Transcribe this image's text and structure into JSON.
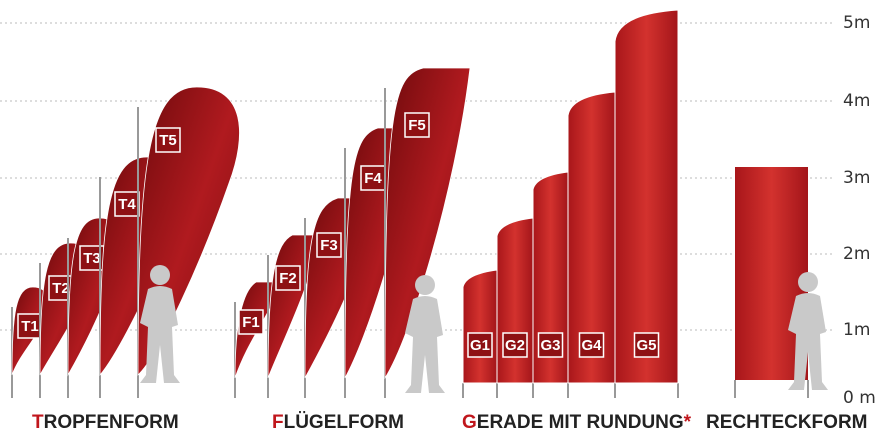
{
  "axis": {
    "labels": [
      "0 m",
      "1m",
      "2m",
      "3m",
      "4m",
      "5m"
    ]
  },
  "flags": {
    "T": [
      "T1",
      "T2",
      "T3",
      "T4",
      "T5"
    ],
    "F": [
      "F1",
      "F2",
      "F3",
      "F4",
      "F5"
    ],
    "G": [
      "G1",
      "G2",
      "G3",
      "G4",
      "G5"
    ]
  },
  "groups": [
    {
      "initial": "T",
      "rest": "ROPFENFORM"
    },
    {
      "initial": "F",
      "rest": "LÜGELFORM"
    },
    {
      "initial": "G",
      "rest": "ERADE MIT RUNDUNG",
      "mark": "*"
    },
    {
      "rest": "RECHTECKFORM"
    }
  ]
}
